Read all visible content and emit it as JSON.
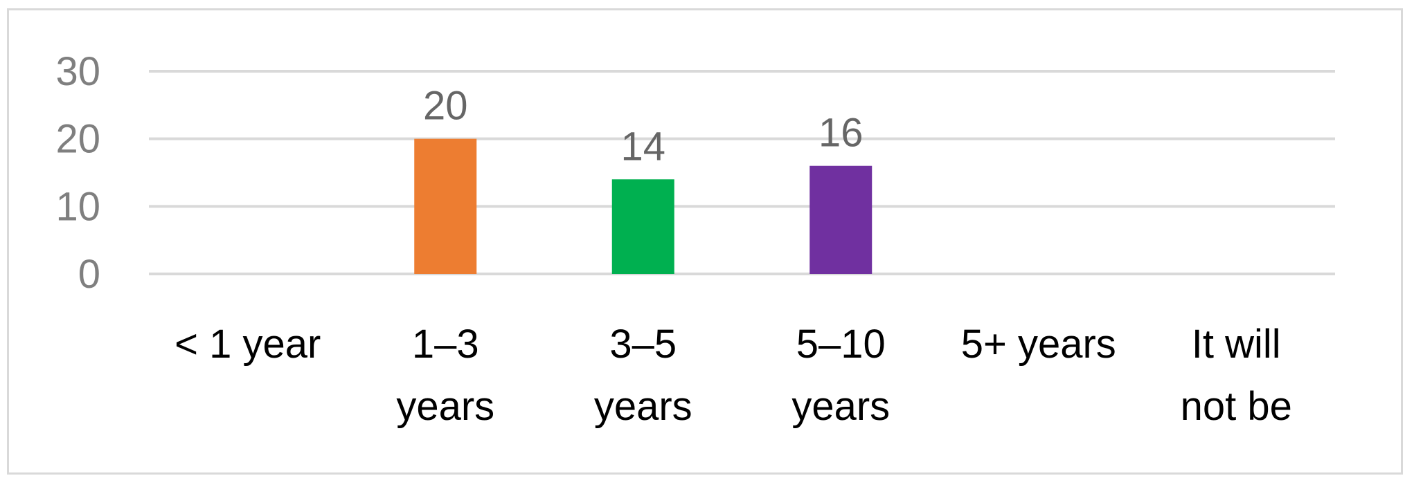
{
  "chart_data": {
    "type": "bar",
    "title": "",
    "xlabel": "",
    "ylabel": "",
    "categories": [
      [
        "< 1 year"
      ],
      [
        "1–3",
        "years"
      ],
      [
        "3–5",
        "years"
      ],
      [
        "5–10",
        "years"
      ],
      [
        "5+ years"
      ],
      [
        "It will",
        "not be"
      ]
    ],
    "values": [
      null,
      20,
      14,
      16,
      null,
      null
    ],
    "bar_colors": [
      "#ed7d31",
      "#ed7d31",
      "#00b050",
      "#7030a0",
      "#4472c4",
      "#4472c4"
    ],
    "ylim": [
      0,
      30
    ],
    "yticks": [
      0,
      10,
      20,
      30
    ],
    "grid": true,
    "gridline_color": "#d9d9d9",
    "legend": "none",
    "data_labels": true
  }
}
